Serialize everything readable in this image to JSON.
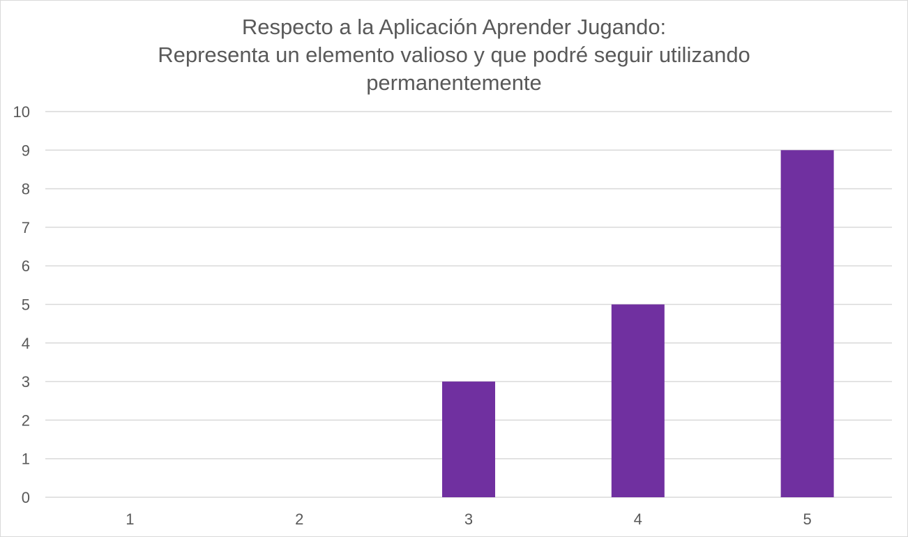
{
  "chart_data": {
    "type": "bar",
    "title_lines": [
      "Respecto a la Aplicación Aprender Jugando:",
      "Representa un elemento valioso y que podré seguir utilizando",
      "permanentemente"
    ],
    "categories": [
      "1",
      "2",
      "3",
      "4",
      "5"
    ],
    "values": [
      0,
      0,
      3,
      5,
      9
    ],
    "xlabel": "",
    "ylabel": "",
    "ylim": [
      0,
      10
    ],
    "yticks": [
      "0",
      "1",
      "2",
      "3",
      "4",
      "5",
      "6",
      "7",
      "8",
      "9",
      "10"
    ],
    "grid": true,
    "legend": "none"
  },
  "colors": {
    "bar": "#7030a0",
    "grid": "#d9d9d9",
    "text": "#595959"
  }
}
